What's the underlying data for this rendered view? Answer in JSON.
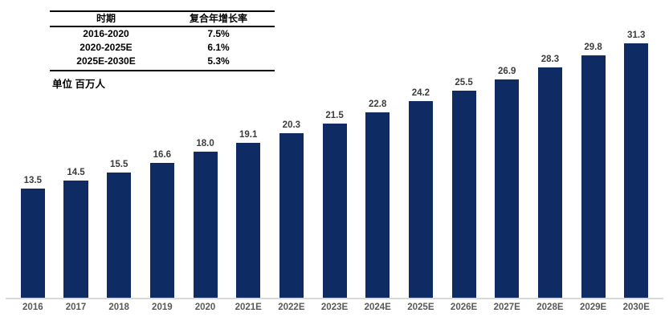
{
  "cagr_table": {
    "headers": [
      "时期",
      "复合年增长率"
    ],
    "rows": [
      {
        "period": "2016-2020",
        "cagr": "7.5%"
      },
      {
        "period": "2020-2025E",
        "cagr": "6.1%"
      },
      {
        "period": "2025E-2030E",
        "cagr": "5.3%"
      }
    ]
  },
  "unit_label": "单位 百万人",
  "chart_data": {
    "type": "bar",
    "categories": [
      "2016",
      "2017",
      "2018",
      "2019",
      "2020",
      "2021E",
      "2022E",
      "2023E",
      "2024E",
      "2025E",
      "2026E",
      "2027E",
      "2028E",
      "2029E",
      "2030E"
    ],
    "values": [
      13.5,
      14.5,
      15.5,
      16.6,
      18.0,
      19.1,
      20.3,
      21.5,
      22.8,
      24.2,
      25.5,
      26.9,
      28.3,
      29.8,
      31.3
    ],
    "title": "",
    "xlabel": "",
    "ylabel": "单位 百万人",
    "ylim": [
      0,
      31.3
    ],
    "grid": false,
    "legend": false,
    "value_labels": true,
    "value_label_decimals": 1
  },
  "colors": {
    "bar": "#0f2b63",
    "axis_line": "#d9d9d9",
    "value_label": "#3d3d3d",
    "tick_label": "#595959",
    "table_text": "#000000",
    "background": "#ffffff"
  }
}
